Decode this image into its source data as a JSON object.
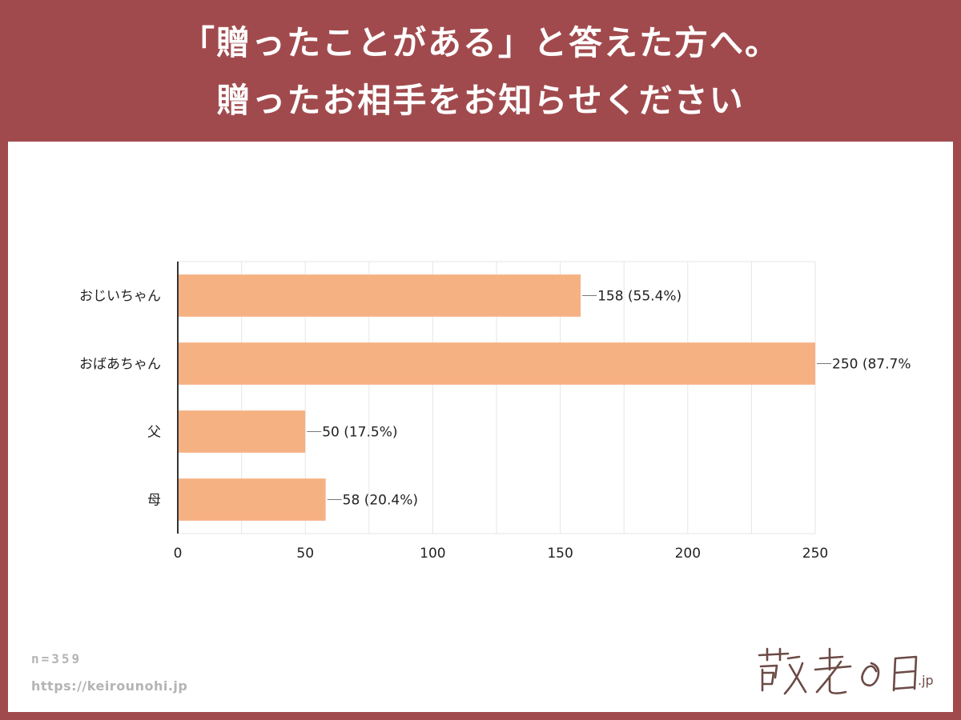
{
  "header": {
    "title_line1": "「贈ったことがある」と答えた方へ。",
    "title_line2": "贈ったお相手をお知らせください"
  },
  "colors": {
    "background": "#a14a4d",
    "bar": "#f6b183",
    "grid": "#e6e6e6",
    "axis": "#333333",
    "text": "#222222"
  },
  "chart_data": {
    "type": "bar",
    "orientation": "horizontal",
    "categories": [
      "おじいちゃん",
      "おばあちゃん",
      "父",
      "母"
    ],
    "values": [
      158,
      250,
      50,
      58
    ],
    "data_labels": [
      "158 (55.4%)",
      "250 (87.7%",
      "50 (17.5%)",
      "58 (20.4%)"
    ],
    "xlim": [
      0,
      250
    ],
    "x_ticks": [
      0,
      50,
      100,
      150,
      200,
      250
    ],
    "x_tick_labels": [
      "0",
      "50",
      "100",
      "150",
      "200",
      "250"
    ],
    "grid": true,
    "legend": "none"
  },
  "footer": {
    "n_text": "n=359",
    "url_text": "https://keirounohi.jp"
  },
  "logo": {
    "text": "敬老の日",
    "suffix": ".jp"
  }
}
